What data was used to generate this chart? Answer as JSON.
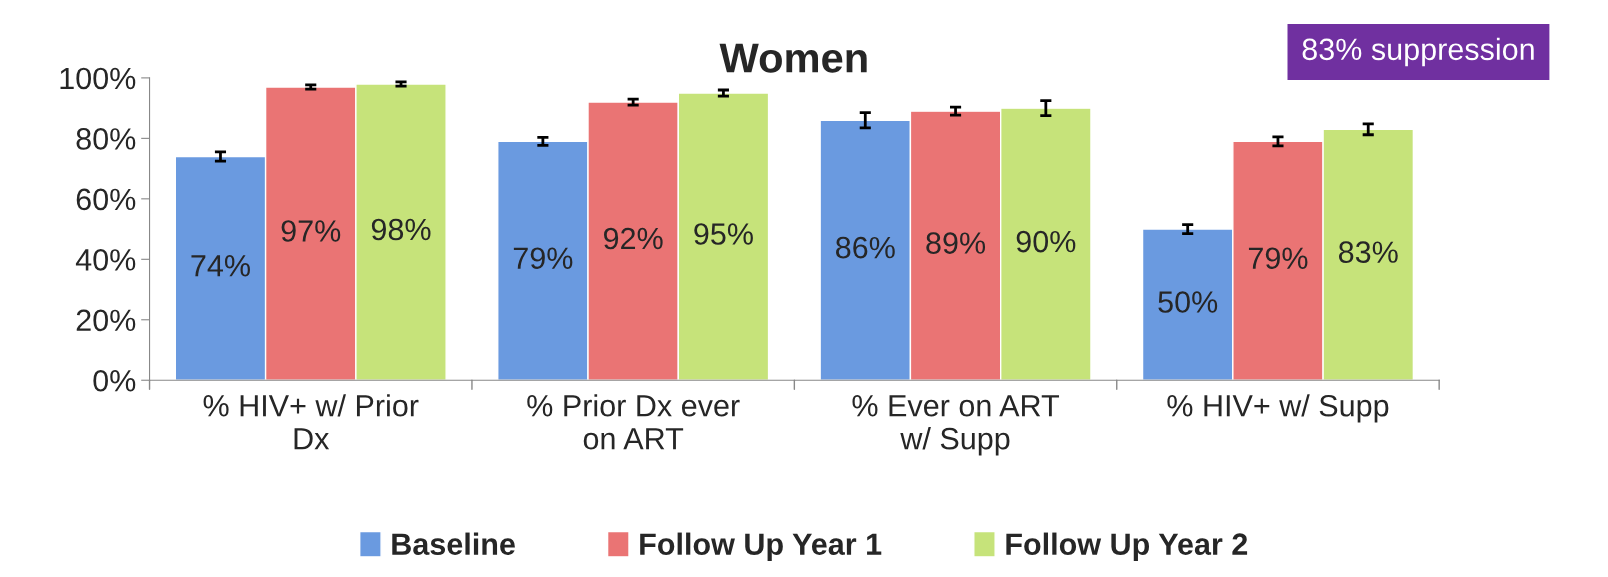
{
  "chart_data": {
    "type": "bar",
    "title": "Women",
    "categories": [
      "% HIV+ w/ Prior Dx",
      "% Prior Dx ever on ART",
      "% Ever on ART w/ Supp",
      "% HIV+ w/ Supp"
    ],
    "series": [
      {
        "name": "Baseline",
        "color": "#6a9ae0",
        "values": [
          74,
          79,
          86,
          50
        ],
        "value_labels": [
          "74%",
          "79%",
          "86%",
          "50%"
        ],
        "errors": [
          1.5,
          1.3,
          2.5,
          1.5
        ]
      },
      {
        "name": "Follow Up Year 1",
        "color": "#ea7474",
        "values": [
          97,
          92,
          89,
          79
        ],
        "value_labels": [
          "97%",
          "92%",
          "89%",
          "79%"
        ],
        "errors": [
          0.7,
          1,
          1.3,
          1.5
        ]
      },
      {
        "name": "Follow Up Year 2",
        "color": "#c6e37a",
        "values": [
          98,
          95,
          90,
          83
        ],
        "value_labels": [
          "98%",
          "95%",
          "90%",
          "83%"
        ],
        "errors": [
          0.7,
          1,
          2.5,
          1.8
        ]
      }
    ],
    "ylim": [
      0,
      100
    ],
    "yticks": [
      {
        "value": 0,
        "label": "0%"
      },
      {
        "value": 20,
        "label": "20%"
      },
      {
        "value": 40,
        "label": "40%"
      },
      {
        "value": 60,
        "label": "60%"
      },
      {
        "value": 80,
        "label": "80%"
      },
      {
        "value": 100,
        "label": "100%"
      }
    ],
    "grid": false,
    "legend": "bottom",
    "annotations": [
      "83% suppression"
    ]
  }
}
